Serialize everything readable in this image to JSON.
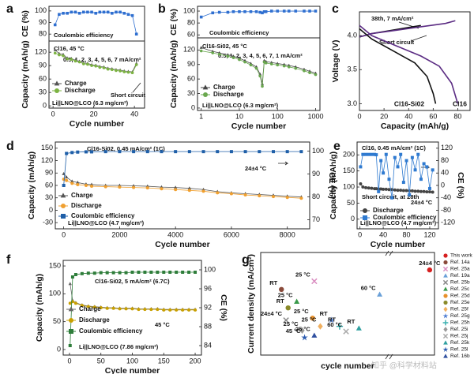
{
  "watermark": "知乎 @科学材料站",
  "chart_data": [
    {
      "type": "line",
      "panel": "a",
      "ylabel": "CE (%)",
      "xlim": [
        -2,
        45
      ],
      "ylim": [
        74,
        104
      ],
      "yticks": [
        80,
        90,
        100
      ],
      "annotations": [
        "Coulombic efficiency"
      ],
      "x": [
        1,
        3,
        5,
        7,
        9,
        11,
        13,
        15,
        17,
        19,
        21,
        23,
        25,
        27,
        29,
        31,
        33,
        35,
        37,
        39,
        41
      ],
      "series": [
        {
          "color": "#2f6fd0",
          "marker": "square",
          "values": [
            88,
            97,
            98,
            98,
            99,
            99,
            98,
            99,
            99,
            99,
            98,
            99,
            99,
            99,
            98,
            99,
            99,
            98,
            97,
            96,
            80
          ]
        }
      ]
    },
    {
      "type": "line",
      "xlabel": "Cycle number",
      "ylabel": "Capacity (mAh/g)",
      "xlim": [
        -2,
        45
      ],
      "ylim": [
        -5,
        145
      ],
      "xticks": [
        0,
        20,
        40
      ],
      "yticks": [
        0,
        30,
        60,
        90,
        120
      ],
      "annotations": [
        "Cl16, 45 °C",
        "0.5, 1, 2, 3, 4, 5, 6, 7 mA/cm²",
        "Short circuit",
        "Li||LNO@LCO (6.3 mg/cm²)"
      ],
      "legend": "lower left",
      "x": [
        1,
        3,
        5,
        7,
        9,
        11,
        13,
        15,
        17,
        19,
        21,
        23,
        25,
        27,
        29,
        31,
        33,
        35,
        37,
        39,
        41
      ],
      "series": [
        {
          "name": "Charge",
          "color": "#555555",
          "marker": "triangle",
          "values": [
            125,
            117,
            115,
            107,
            106,
            102,
            100,
            96,
            95,
            92,
            91,
            88,
            87,
            84,
            83,
            81,
            80,
            78,
            77,
            76,
            95
          ]
        },
        {
          "name": "Discharge",
          "color": "#7cb342",
          "marker": "circle",
          "values": [
            118,
            114,
            112,
            105,
            104,
            100,
            98,
            94,
            93,
            90,
            89,
            86,
            85,
            82,
            81,
            79,
            78,
            76,
            75,
            74,
            92
          ]
        }
      ]
    },
    {
      "type": "line",
      "panel": "b",
      "ylabel": "CE (%)",
      "xscale": "log",
      "xlim": [
        0.8,
        1300
      ],
      "ylim": [
        55,
        108
      ],
      "yticks": [
        60,
        80,
        100
      ],
      "annotations": [
        "Coulombic efficiency"
      ],
      "x": [
        1,
        2,
        3,
        5,
        7,
        10,
        14,
        20,
        28,
        35,
        40,
        45,
        50,
        70,
        100,
        150,
        200,
        300,
        500,
        700,
        1000
      ],
      "series": [
        {
          "color": "#2f6fd0",
          "marker": "square",
          "values": [
            90,
            97,
            98,
            98,
            99,
            99,
            99,
            99,
            99,
            98,
            97,
            99,
            99,
            100,
            100,
            100,
            100,
            100,
            100,
            100,
            100
          ]
        }
      ]
    },
    {
      "type": "line",
      "xlabel": "Cycle number",
      "ylabel": "Capacity (mAh/g)",
      "xscale": "log",
      "xlim": [
        0.8,
        1300
      ],
      "ylim": [
        -5,
        145
      ],
      "xticks": [
        1,
        10,
        100,
        1000
      ],
      "yticks": [
        0,
        30,
        60,
        90,
        120
      ],
      "annotations": [
        "Cl16-Si02, 45 °C",
        "0.5, 1, 2, 3, 4, 5, 6, 7, 1 mA/cm²",
        "Li||LNO@LCO (6.3 mg/cm²)"
      ],
      "legend": "lower left",
      "x": [
        1,
        2,
        3,
        5,
        7,
        10,
        14,
        20,
        28,
        35,
        40,
        45,
        50,
        70,
        100,
        150,
        200,
        300,
        500,
        700,
        1000
      ],
      "series": [
        {
          "name": "Charge",
          "color": "#444444",
          "marker": "triangle",
          "values": [
            125,
            117,
            114,
            110,
            107,
            103,
            98,
            92,
            85,
            70,
            50,
            98,
            96,
            94,
            92,
            90,
            88,
            85,
            80,
            76,
            72
          ]
        },
        {
          "name": "Discharge",
          "color": "#6aa84f",
          "marker": "circle",
          "values": [
            118,
            114,
            111,
            107,
            104,
            100,
            95,
            89,
            82,
            66,
            45,
            95,
            93,
            91,
            89,
            87,
            85,
            82,
            77,
            73,
            69
          ]
        }
      ]
    },
    {
      "type": "line",
      "panel": "c",
      "xlabel": "Capacity (mAh/g)",
      "ylabel": "Voltage (V)",
      "xlim": [
        0,
        90
      ],
      "ylim": [
        2.9,
        4.35
      ],
      "xticks": [
        0,
        20,
        40,
        60,
        80
      ],
      "yticks": [
        {
          "value": 3,
          "label": "3.0"
        },
        3.5,
        {
          "value": 4,
          "label": "4.0"
        }
      ],
      "annotations": [
        "38th, 7 mA/cm²",
        "Short circuit"
      ],
      "series": [
        {
          "color": "#111111",
          "x": [
            0,
            10,
            20,
            30,
            40,
            50
          ],
          "values": [
            3.98,
            4.03,
            4.06,
            4.09,
            4.12,
            4.15
          ]
        },
        {
          "color": "#5b2c83",
          "x": [
            0,
            10,
            30,
            50,
            70,
            78
          ],
          "values": [
            3.98,
            4.03,
            4.08,
            4.13,
            4.18,
            4.22
          ]
        },
        {
          "name": "Cl16-Si02",
          "color": "#111111",
          "x": [
            0,
            10,
            30,
            45,
            55,
            60,
            62
          ],
          "values": [
            4.1,
            3.95,
            3.75,
            3.6,
            3.4,
            3.15,
            3.0
          ]
        },
        {
          "name": "Cl16",
          "color": "#5b2c83",
          "x": [
            0,
            10,
            30,
            50,
            65,
            75,
            80
          ],
          "values": [
            4.15,
            4.0,
            3.85,
            3.7,
            3.55,
            3.3,
            3.0
          ]
        }
      ]
    },
    {
      "type": "line",
      "panel": "d",
      "xlabel": "Cycle number",
      "ylabel": "Capacity (mAh/g)",
      "y2label": "CE (%)",
      "xlim": [
        -300,
        8800
      ],
      "ylim": [
        -45,
        165
      ],
      "y2lim": [
        66,
        104
      ],
      "xticks": [
        0,
        2000,
        4000,
        6000,
        8000
      ],
      "yticks": [
        -30,
        0,
        30,
        60,
        90,
        120,
        150
      ],
      "y2ticks": [
        70,
        80,
        90,
        100
      ],
      "annotations": [
        "Cl16-Si02, 0.45 mA/cm² (1C)",
        "24±4 °C",
        "Li||LNO@LCO (4.7 mg/cm²)"
      ],
      "legend": "lower left",
      "x": [
        1,
        100,
        300,
        500,
        800,
        1000,
        1500,
        2000,
        2500,
        3000,
        3500,
        4000,
        4500,
        5000,
        5500,
        6000,
        6500,
        7000,
        7500,
        8000,
        8500
      ],
      "series": [
        {
          "name": "Charge",
          "color": "#555555",
          "marker": "triangle",
          "values": [
            88,
            80,
            70,
            67,
            63,
            62,
            60,
            60,
            59,
            58,
            56,
            55,
            53,
            50,
            45,
            42,
            40,
            38,
            36,
            34,
            32
          ]
        },
        {
          "name": "Discharge",
          "color": "#f0a030",
          "marker": "circle",
          "values": [
            75,
            72,
            65,
            62,
            60,
            58,
            57,
            56,
            55,
            54,
            52,
            50,
            48,
            46,
            42,
            40,
            37,
            35,
            33,
            31,
            29
          ]
        },
        {
          "name": "Coulombic efficiency",
          "color": "#1f5fa8",
          "marker": "square",
          "axis": "y2",
          "values": [
            85,
            99,
            99.4,
            99.6,
            99.7,
            99.7,
            99.8,
            99.8,
            99.8,
            99.8,
            99.8,
            99.8,
            99.8,
            99.8,
            99.8,
            99.8,
            99.8,
            99.8,
            99.8,
            99.8,
            99.8
          ]
        }
      ]
    },
    {
      "type": "line",
      "panel": "e",
      "xlabel": "Cycle number",
      "ylabel": "Capacity (mAh/g)",
      "y2label": "CE (%)",
      "xlim": [
        -5,
        135
      ],
      "ylim": [
        -30,
        240
      ],
      "y2lim": [
        -140,
        140
      ],
      "xticks": [
        0,
        40,
        80,
        120
      ],
      "yticks": [
        0,
        50,
        100,
        150,
        200
      ],
      "y2ticks": [
        -120,
        -80,
        -40,
        0,
        40,
        80,
        120
      ],
      "annotations": [
        "Cl16, 0.45 mA/cm² (1C)",
        "Short circuit, at 28th",
        "24±4 °C",
        "Li||LNO@LCO (4.7 mg/cm²)"
      ],
      "legend": "lower left",
      "x": [
        1,
        5,
        10,
        15,
        20,
        25,
        28,
        32,
        36,
        40,
        45,
        50,
        55,
        60,
        65,
        70,
        75,
        80,
        85,
        90,
        95,
        100,
        105,
        110,
        115,
        120,
        125
      ],
      "series": [
        {
          "name": "Discharge",
          "color": "#444444",
          "marker": "circle",
          "values": [
            110,
            100,
            98,
            97,
            96,
            95,
            95,
            94,
            94,
            93,
            93,
            92,
            92,
            91,
            90,
            90,
            89,
            89,
            88,
            88,
            87,
            87,
            86,
            86,
            85,
            85,
            84
          ]
        },
        {
          "name": "Coulombic efficiency",
          "color": "#2f7ad0",
          "marker": "square",
          "axis": "y2",
          "values": [
            60,
            100,
            100,
            100,
            100,
            100,
            99,
            -20,
            80,
            40,
            100,
            20,
            -40,
            90,
            60,
            100,
            10,
            80,
            -30,
            90,
            50,
            100,
            20,
            70,
            60,
            -10,
            50
          ]
        }
      ]
    },
    {
      "type": "line",
      "panel": "f",
      "xlabel": "Cycle number",
      "ylabel": "Capacity (mAh/g)",
      "y2label": "CE (%)",
      "xlim": [
        -10,
        210
      ],
      "ylim": [
        -10,
        160
      ],
      "y2lim": [
        82,
        102
      ],
      "xticks": [
        0,
        50,
        100,
        150,
        200
      ],
      "yticks": [
        0,
        50,
        100,
        150
      ],
      "y2ticks": [
        84,
        88,
        92,
        96,
        100
      ],
      "annotations": [
        "Cl16-Si02, 5 mA/cm² (6.7C)",
        "45 °C",
        "Li||LNO@LCO (7.86 mg/cm²)"
      ],
      "legend": "lower left",
      "x": [
        1,
        5,
        10,
        20,
        30,
        40,
        50,
        60,
        70,
        80,
        90,
        100,
        110,
        120,
        130,
        140,
        150,
        160,
        170,
        180,
        190,
        200
      ],
      "series": [
        {
          "name": "Charge",
          "color": "#666666",
          "marker": "triangle",
          "values": [
            118,
            88,
            84,
            80,
            78,
            77,
            76,
            75,
            75,
            74,
            74,
            74,
            73,
            73,
            73,
            73,
            72,
            72,
            72,
            72,
            72,
            72
          ]
        },
        {
          "name": "Discharge",
          "color": "#c9a000",
          "marker": "circle",
          "values": [
            83,
            86,
            83,
            79,
            77,
            76,
            75,
            74,
            74,
            73,
            73,
            73,
            72,
            72,
            72,
            72,
            71,
            71,
            71,
            71,
            71,
            71
          ]
        },
        {
          "name": "Coulombic efficiency",
          "color": "#2e7d3a",
          "marker": "square",
          "axis": "y2",
          "values": [
            84,
            98.5,
            99,
            99.2,
            99.3,
            99.3,
            99.4,
            99.4,
            99.4,
            99.4,
            99.4,
            99.5,
            99.5,
            99.5,
            99.5,
            99.5,
            99.5,
            99.5,
            99.5,
            99.5,
            99.5,
            99.5
          ]
        }
      ]
    },
    {
      "type": "scatter",
      "panel": "g",
      "xlabel": "cycle number",
      "ylabel": "Current density (mA/cm²)",
      "xscale": "log",
      "xlim": [
        30,
        10000
      ],
      "ylim": [
        0,
        10
      ],
      "legend": "outside right",
      "series": [
        {
          "name": "This work",
          "color": "#d62020",
          "marker": "circle",
          "x": [
            8500
          ],
          "values": [
            8.3
          ],
          "condition": "24±4 °C"
        },
        {
          "name": "Ref. 14a",
          "color": "#8a4a3a",
          "marker": "circle",
          "x": [
            60
          ],
          "values": [
            6.4
          ],
          "condition": "RT"
        },
        {
          "name": "Ref. 25a",
          "color": "#d98cc0",
          "marker": "x",
          "x": [
            180
          ],
          "values": [
            7.2
          ],
          "condition": "25 °C"
        },
        {
          "name": "Ref. 19a",
          "color": "#6aa0d8",
          "marker": "triangle",
          "x": [
            1600
          ],
          "values": [
            5.9
          ],
          "condition": "60 °C"
        },
        {
          "name": "Ref. 25b",
          "color": "#888888",
          "marker": "x",
          "x": [
            70
          ],
          "values": [
            3.4
          ],
          "condition": "24±4 °C"
        },
        {
          "name": "Ref. 25c",
          "color": "#3a9a4a",
          "marker": "triangle",
          "x": [
            100
          ],
          "values": [
            5.2
          ],
          "condition": "25 °C"
        },
        {
          "name": "Ref. 25d",
          "color": "#e8902a",
          "marker": "circle",
          "x": [
            170
          ],
          "values": [
            3.6
          ],
          "condition": "25 °C"
        },
        {
          "name": "Ref. 25e",
          "color": "#8a8a2a",
          "marker": "circle",
          "x": [
            75
          ],
          "values": [
            4.6
          ],
          "condition": "RT"
        },
        {
          "name": "Ref. 25f",
          "color": "#f0b060",
          "marker": "diamond",
          "x": [
            220
          ],
          "values": [
            2.8
          ],
          "condition": "25 °C"
        },
        {
          "name": "Ref. 25g",
          "color": "#4a7ad0",
          "marker": "star",
          "x": [
            320
          ],
          "values": [
            3.4
          ],
          "condition": "RT"
        },
        {
          "name": "Ref. 25h",
          "color": "#3ab0b0",
          "marker": "cross",
          "x": [
            420
          ],
          "values": [
            2.8
          ],
          "condition": "RT"
        },
        {
          "name": "Ref. 25i",
          "color": "#999999",
          "marker": "diamond",
          "x": [
            120
          ],
          "values": [
            2.4
          ],
          "condition": "25 °C"
        },
        {
          "name": "Ref. 25j",
          "color": "#aaaaaa",
          "marker": "x",
          "x": [
            520
          ],
          "values": [
            2.3
          ],
          "condition": "60 °C"
        },
        {
          "name": "Ref. 25k",
          "color": "#30a0a0",
          "marker": "triangle",
          "x": [
            800
          ],
          "values": [
            2.6
          ],
          "condition": "RT"
        },
        {
          "name": "Ref. 25l",
          "color": "#2a5ab0",
          "marker": "star",
          "x": [
            130
          ],
          "values": [
            1.7
          ],
          "condition": "45 °C"
        },
        {
          "name": "Ref. 16b",
          "color": "#3050a0",
          "marker": "triangle",
          "x": [
            180
          ],
          "values": [
            1.9
          ],
          "condition": "25 °C"
        }
      ]
    }
  ]
}
